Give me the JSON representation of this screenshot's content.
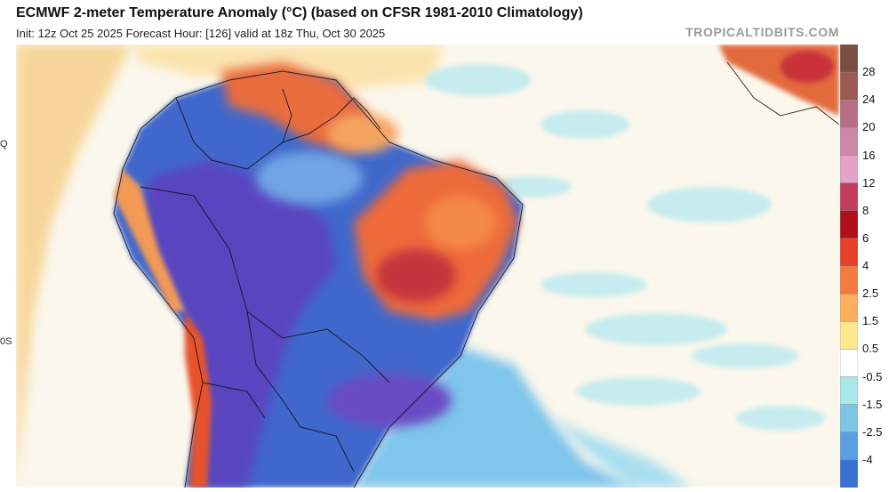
{
  "header": {
    "title": "ECMWF 2-meter Temperature Anomaly (°C) (based on CFSR 1981-2010 Climatology)",
    "subtitle": "Init: 12z Oct 25 2025   Forecast Hour: [126]   valid at 18z Thu, Oct 30 2025",
    "brand": "TROPICALTIDBITS.COM"
  },
  "map": {
    "lat_labels": [
      "Q",
      "0S"
    ]
  },
  "colorbar": {
    "labels": [
      "28",
      "24",
      "20",
      "16",
      "12",
      "8",
      "6",
      "4",
      "2.5",
      "1.5",
      "0.5",
      "-0.5",
      "-1.5",
      "-2.5",
      "-4"
    ],
    "colors": [
      "#7a5040",
      "#9c5a52",
      "#b86f86",
      "#cc86a8",
      "#e4a2c8",
      "#c23c5c",
      "#b0101a",
      "#e5412a",
      "#f57a3e",
      "#fcae5c",
      "#fde78f",
      "#ffffff",
      "#a9e8e8",
      "#7ec4e4",
      "#5aa0e2",
      "#3a72d4"
    ]
  }
}
